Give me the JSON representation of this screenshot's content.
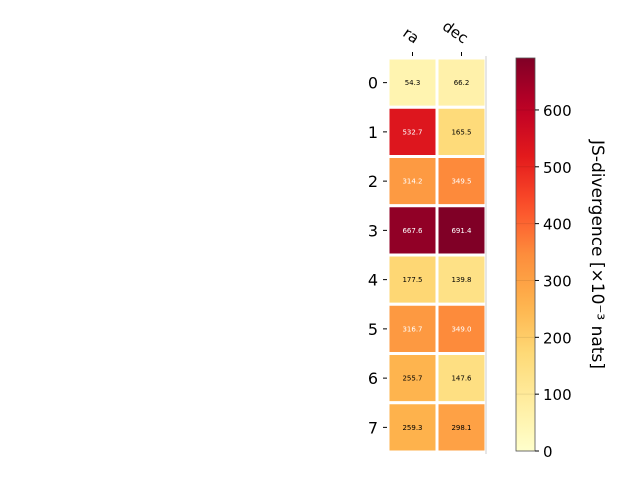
{
  "chart_data": {
    "type": "heatmap",
    "columns": [
      "ra",
      "dec"
    ],
    "rows": [
      "0",
      "1",
      "2",
      "3",
      "4",
      "5",
      "6",
      "7"
    ],
    "values": [
      [
        54.3,
        66.2
      ],
      [
        532.7,
        165.5
      ],
      [
        314.2,
        349.5
      ],
      [
        667.6,
        691.4
      ],
      [
        177.5,
        139.8
      ],
      [
        316.7,
        349.0
      ],
      [
        255.7,
        147.6
      ],
      [
        259.3,
        298.1
      ]
    ],
    "value_labels": [
      [
        "54.3",
        "66.2"
      ],
      [
        "532.7",
        "165.5"
      ],
      [
        "314.2",
        "349.5"
      ],
      [
        "667.6",
        "691.4"
      ],
      [
        "177.5",
        "139.8"
      ],
      [
        "316.7",
        "349.0"
      ],
      [
        "255.7",
        "147.6"
      ],
      [
        "259.3",
        "298.1"
      ]
    ],
    "colorbar": {
      "label": "JS-divergence [×10⁻³ nats]",
      "min": 0,
      "max": 691.4,
      "ticks": [
        0,
        100,
        200,
        300,
        400,
        500,
        600
      ],
      "tick_labels": [
        "0",
        "100",
        "200",
        "300",
        "400",
        "500",
        "600"
      ],
      "colormap": "YlOrRd"
    },
    "cell_border_color": "#ffffff",
    "text_color_dark": "#000000",
    "text_color_light": "#ffffff"
  }
}
